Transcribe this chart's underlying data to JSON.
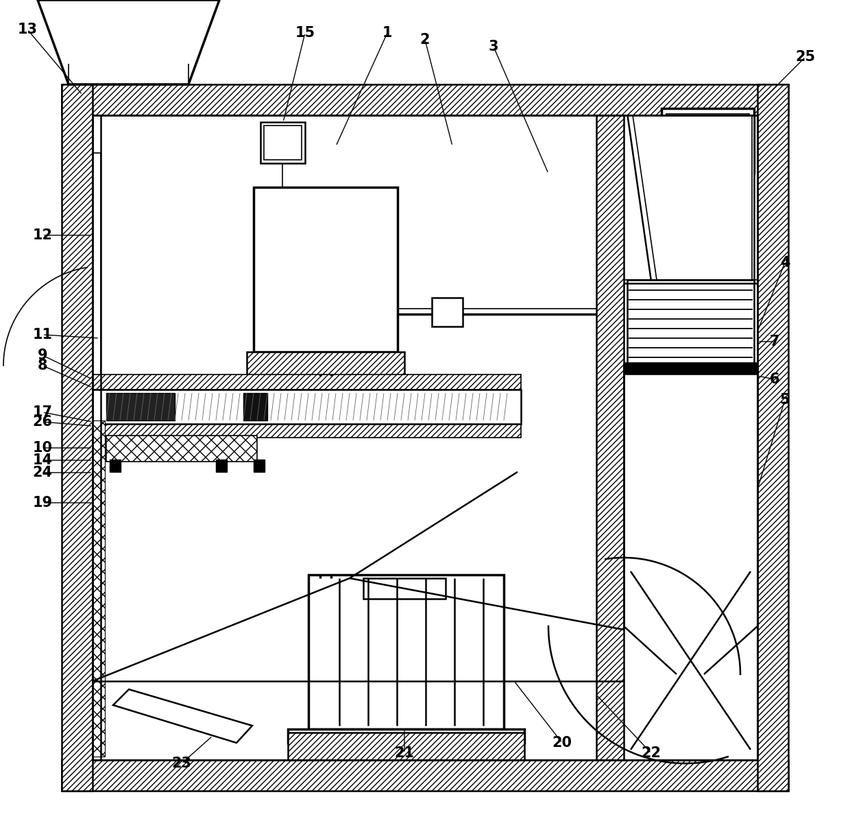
{
  "bg_color": "#ffffff",
  "fig_width": 12.4,
  "fig_height": 12.13,
  "dpi": 100
}
